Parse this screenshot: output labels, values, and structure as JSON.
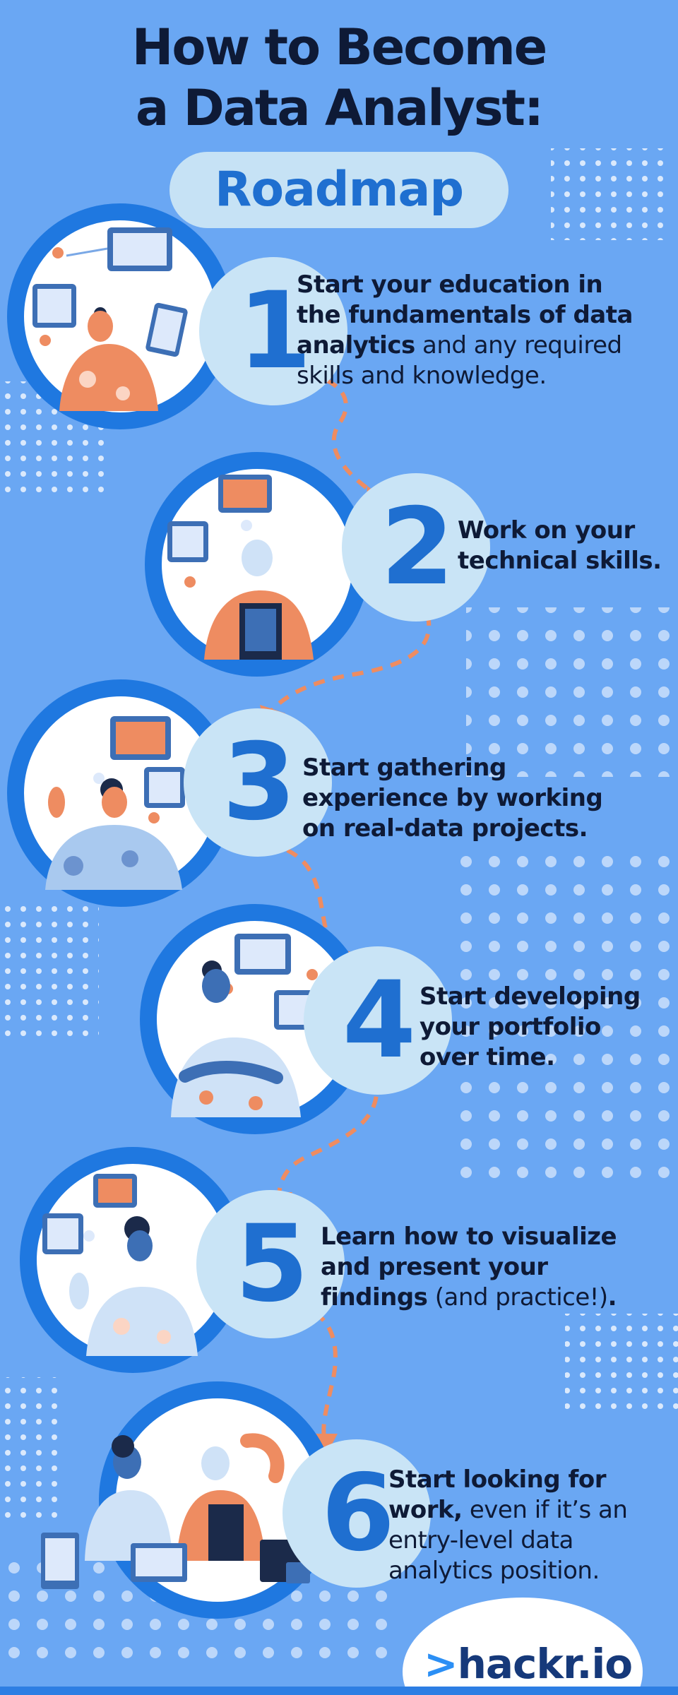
{
  "header": {
    "title_line1": "How to Become",
    "title_line2": "a Data Analyst:",
    "subtitle": "Roadmap"
  },
  "colors": {
    "background": "#6aa7f3",
    "ring_blue": "#1f78e0",
    "number_blue": "#1f6fd0",
    "number_circle": "#c9e4f6",
    "connector_orange": "#ee8c61",
    "text_dark": "#0e1a36"
  },
  "steps": [
    {
      "number": "1",
      "parts": [
        {
          "text": "Start your education in the fundamentals of data analytics",
          "bold": true
        },
        {
          "text": " and any required skills and knowledge.",
          "bold": false
        }
      ]
    },
    {
      "number": "2",
      "parts": [
        {
          "text": "Work on your technical skills.",
          "bold": true
        }
      ]
    },
    {
      "number": "3",
      "parts": [
        {
          "text": "Start gathering experience by working on real-data projects.",
          "bold": true
        }
      ]
    },
    {
      "number": "4",
      "parts": [
        {
          "text": "Start developing your portfolio over time.",
          "bold": true
        }
      ]
    },
    {
      "number": "5",
      "parts": [
        {
          "text": "Learn how to visualize and present your findings",
          "bold": true
        },
        {
          "text": " (and practice!)",
          "bold": false
        },
        {
          "text": ".",
          "bold": true
        }
      ]
    },
    {
      "number": "6",
      "parts": [
        {
          "text": "Start looking for work,",
          "bold": true
        },
        {
          "text": " even if it’s an entry-level data analytics position.",
          "bold": false
        }
      ]
    }
  ],
  "logo": {
    "chevron": ">",
    "text": "hackr.io"
  }
}
